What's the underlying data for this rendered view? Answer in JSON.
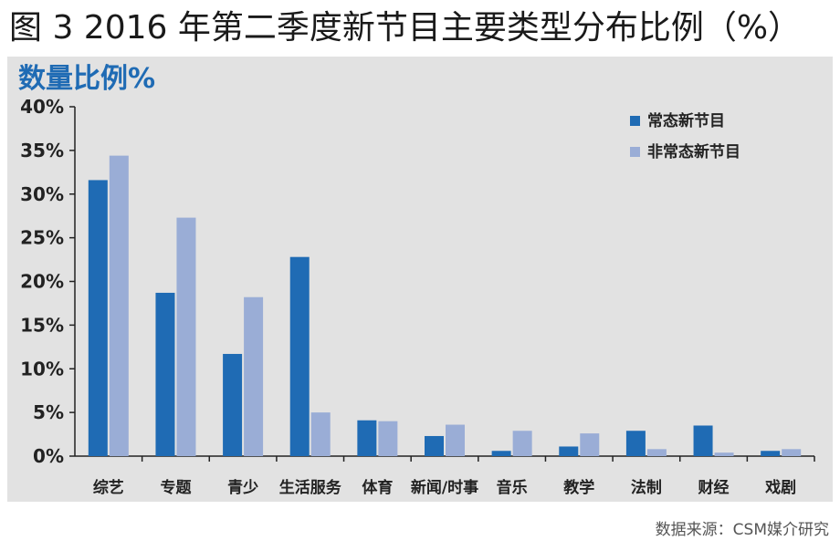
{
  "figure": {
    "title": "图 3 2016 年第二季度新节目主要类型分布比例（%）",
    "source": "数据来源：CSM媒介研究"
  },
  "colors": {
    "series1": "#1f6bb4",
    "series2": "#9aadd6",
    "panel_bg": "#e2e2e2",
    "title_blue": "#1f6bb4"
  },
  "chart_data": {
    "type": "bar",
    "title": "数量比例%",
    "xlabel": "",
    "ylabel": "",
    "ylim": [
      0,
      40
    ],
    "y_ticks": [
      "0%",
      "5%",
      "10%",
      "15%",
      "20%",
      "25%",
      "30%",
      "35%",
      "40%"
    ],
    "grid": false,
    "legend_position": "top-right",
    "categories": [
      "综艺",
      "专题",
      "青少",
      "生活服务",
      "体育",
      "新闻/时事",
      "音乐",
      "教学",
      "法制",
      "财经",
      "戏剧"
    ],
    "series": [
      {
        "name": "常态新节目",
        "values": [
          31.6,
          18.7,
          11.7,
          22.8,
          4.1,
          2.3,
          0.6,
          1.1,
          2.9,
          3.5,
          0.6
        ]
      },
      {
        "name": "非常态新节目",
        "values": [
          34.4,
          27.3,
          18.2,
          5.0,
          4.0,
          3.6,
          2.9,
          2.6,
          0.8,
          0.4,
          0.8
        ]
      }
    ]
  }
}
